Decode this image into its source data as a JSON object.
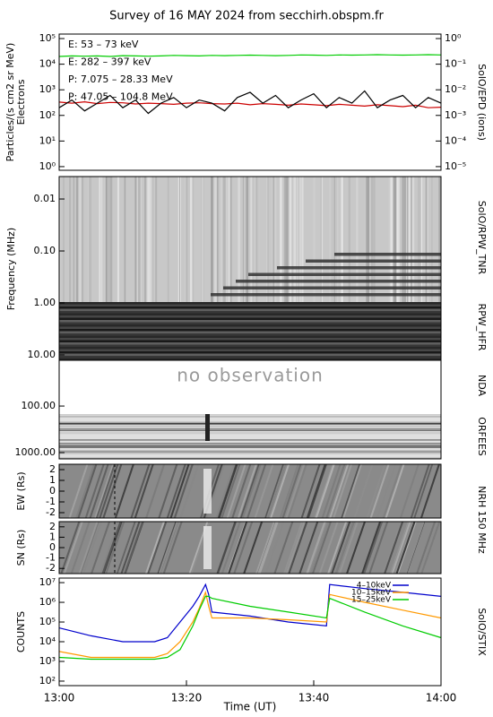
{
  "title": "Survey of 16 MAY 2024 from secchirh.obspm.fr",
  "chart_data": [
    {
      "type": "line",
      "ylabel": "Particles/(s cm2 sr MeV)",
      "ylabel2": "Electrons",
      "y2label": "SolO/EPD (ions)",
      "log": true,
      "legend": "upper left",
      "xlim": [
        0,
        60
      ],
      "ylim": [
        0.72,
        150000
      ],
      "yticks": [
        {
          "value": 1,
          "label": "10⁰"
        },
        {
          "value": 10,
          "label": "10¹"
        },
        {
          "value": 100,
          "label": "10²"
        },
        {
          "value": 1000,
          "label": "10³"
        },
        {
          "value": 10000,
          "label": "10⁴"
        },
        {
          "value": 100000,
          "label": "10⁵"
        }
      ],
      "y2lim": [
        7.2e-06,
        1.5
      ],
      "y2ticks": [
        {
          "value": 1e-05,
          "label": "10⁻⁵"
        },
        {
          "value": 0.0001,
          "label": "10⁻⁴"
        },
        {
          "value": 0.001,
          "label": "10⁻³"
        },
        {
          "value": 0.01,
          "label": "10⁻²"
        },
        {
          "value": 0.1,
          "label": "10⁻¹"
        },
        {
          "value": 1,
          "label": "10⁰"
        }
      ],
      "x": [
        0,
        2,
        4,
        6,
        8,
        10,
        12,
        14,
        16,
        18,
        20,
        22,
        24,
        26,
        28,
        30,
        32,
        34,
        36,
        38,
        40,
        42,
        44,
        46,
        48,
        50,
        52,
        54,
        56,
        58,
        60
      ],
      "series": [
        {
          "name": "E: 53 – 73 keV",
          "color": "#00cc00",
          "values": [
            20000,
            21000,
            20500,
            21000,
            20000,
            21500,
            21000,
            20500,
            21000,
            22000,
            21500,
            21000,
            22000,
            21500,
            22000,
            22500,
            22000,
            21500,
            22000,
            23000,
            22500,
            22000,
            23000,
            22500,
            23000,
            23500,
            23000,
            22500,
            23000,
            23500,
            23000
          ]
        },
        {
          "name": "E: 282 – 397 keV",
          "color": "#cc0000",
          "values": [
            330,
            300,
            340,
            290,
            320,
            310,
            280,
            300,
            290,
            270,
            300,
            310,
            290,
            280,
            300,
            260,
            290,
            270,
            250,
            280,
            260,
            240,
            270,
            250,
            230,
            260,
            240,
            220,
            250,
            200,
            210
          ]
        },
        {
          "name": "P: 7.075 – 28.33 MeV",
          "color": "#000000",
          "axis": "y2",
          "values": [
            0.002,
            0.004,
            0.0015,
            0.003,
            0.006,
            0.002,
            0.004,
            0.0012,
            0.003,
            0.005,
            0.002,
            0.004,
            0.003,
            0.0015,
            0.005,
            0.008,
            0.003,
            0.006,
            0.002,
            0.004,
            0.007,
            0.002,
            0.005,
            0.003,
            0.009,
            0.002,
            0.004,
            0.006,
            0.002,
            0.005,
            0.003
          ]
        },
        {
          "name": "P: 47.05 – 104.8 MeV",
          "color": "#0000cc",
          "axis": "y2",
          "values": [
            null,
            null,
            null,
            null,
            null,
            null,
            null,
            null,
            null,
            null,
            null,
            null,
            null,
            null,
            null,
            null,
            null,
            null,
            null,
            null,
            null,
            null,
            null,
            null,
            null,
            null,
            null,
            null,
            null,
            null,
            null
          ]
        }
      ]
    },
    {
      "type": "spectrogram",
      "ylabel": "Frequency (MHz)",
      "labels": [
        "SolO/RPW_TNR",
        "RPW_HFR"
      ],
      "log": true,
      "y_inverted": true,
      "ylim": [
        0.0037,
        12.7
      ],
      "yticks": [
        0.01,
        {
          "value": 0.1,
          "label": "0.10"
        },
        {
          "value": 1,
          "label": "1.00"
        },
        {
          "value": 10,
          "label": "10.00"
        }
      ]
    },
    {
      "type": "spectrogram",
      "annotation": "no observation",
      "labels": [
        "NDA",
        "ORFEES"
      ],
      "log": true,
      "y_inverted": true,
      "ylim": [
        10.4,
        1364
      ],
      "yticks": [
        {
          "value": 100,
          "label": "100.00"
        },
        {
          "value": 1000,
          "label": "1000.00"
        }
      ]
    },
    {
      "type": "image",
      "ylabel": "EW (Rs)",
      "ylim": [
        -2.5,
        2.5
      ],
      "yticks": [
        -2,
        -1,
        0,
        1,
        2
      ]
    },
    {
      "type": "image",
      "ylabel": "SN (Rs)",
      "label": "NRH 150 MHz",
      "ylim": [
        -2.5,
        2.5
      ],
      "yticks": [
        -2,
        -1,
        0,
        1,
        2
      ]
    },
    {
      "type": "line",
      "ylabel": "COUNTS",
      "y2label": "SolO/STIX",
      "log": true,
      "legend": "upper right",
      "xlim": [
        0,
        60
      ],
      "xlabel": "Time (UT)",
      "xticks": [
        {
          "value": 0,
          "label": "13:00"
        },
        {
          "value": 20,
          "label": "13:20"
        },
        {
          "value": 40,
          "label": "13:40"
        },
        {
          "value": 60,
          "label": "14:00"
        }
      ],
      "ylim": [
        59,
        17000000
      ],
      "yticks": [
        {
          "value": 100,
          "label": "10²"
        },
        {
          "value": 1000,
          "label": "10³"
        },
        {
          "value": 10000,
          "label": "10⁴"
        },
        {
          "value": 100000,
          "label": "10⁵"
        },
        {
          "value": 1000000,
          "label": "10⁶"
        },
        {
          "value": 10000000,
          "label": "10⁷"
        }
      ],
      "x": [
        0,
        5,
        10,
        15,
        17,
        19,
        21,
        22,
        23,
        23.5,
        24,
        30,
        36,
        42,
        42.5,
        48,
        54,
        60
      ],
      "series": [
        {
          "name": "4–10keV",
          "color": "#0000cc",
          "values": [
            50000,
            20000,
            10000,
            10000,
            16000,
            100000,
            630000,
            2000000,
            8000000,
            2500000,
            320000,
            200000,
            100000,
            63000,
            8000000,
            5000000,
            3200000,
            2000000
          ]
        },
        {
          "name": "10–15keV",
          "color": "#ff9900",
          "values": [
            3200,
            1600,
            1600,
            1600,
            2500,
            10000,
            100000,
            500000,
            3200000,
            630000,
            160000,
            160000,
            130000,
            100000,
            2500000,
            1000000,
            400000,
            160000
          ]
        },
        {
          "name": "15–25keV",
          "color": "#00cc00",
          "values": [
            1600,
            1300,
            1300,
            1300,
            1600,
            4000,
            63000,
            400000,
            2000000,
            2000000,
            1600000,
            630000,
            320000,
            160000,
            1600000,
            320000,
            63000,
            16000
          ]
        }
      ]
    }
  ]
}
